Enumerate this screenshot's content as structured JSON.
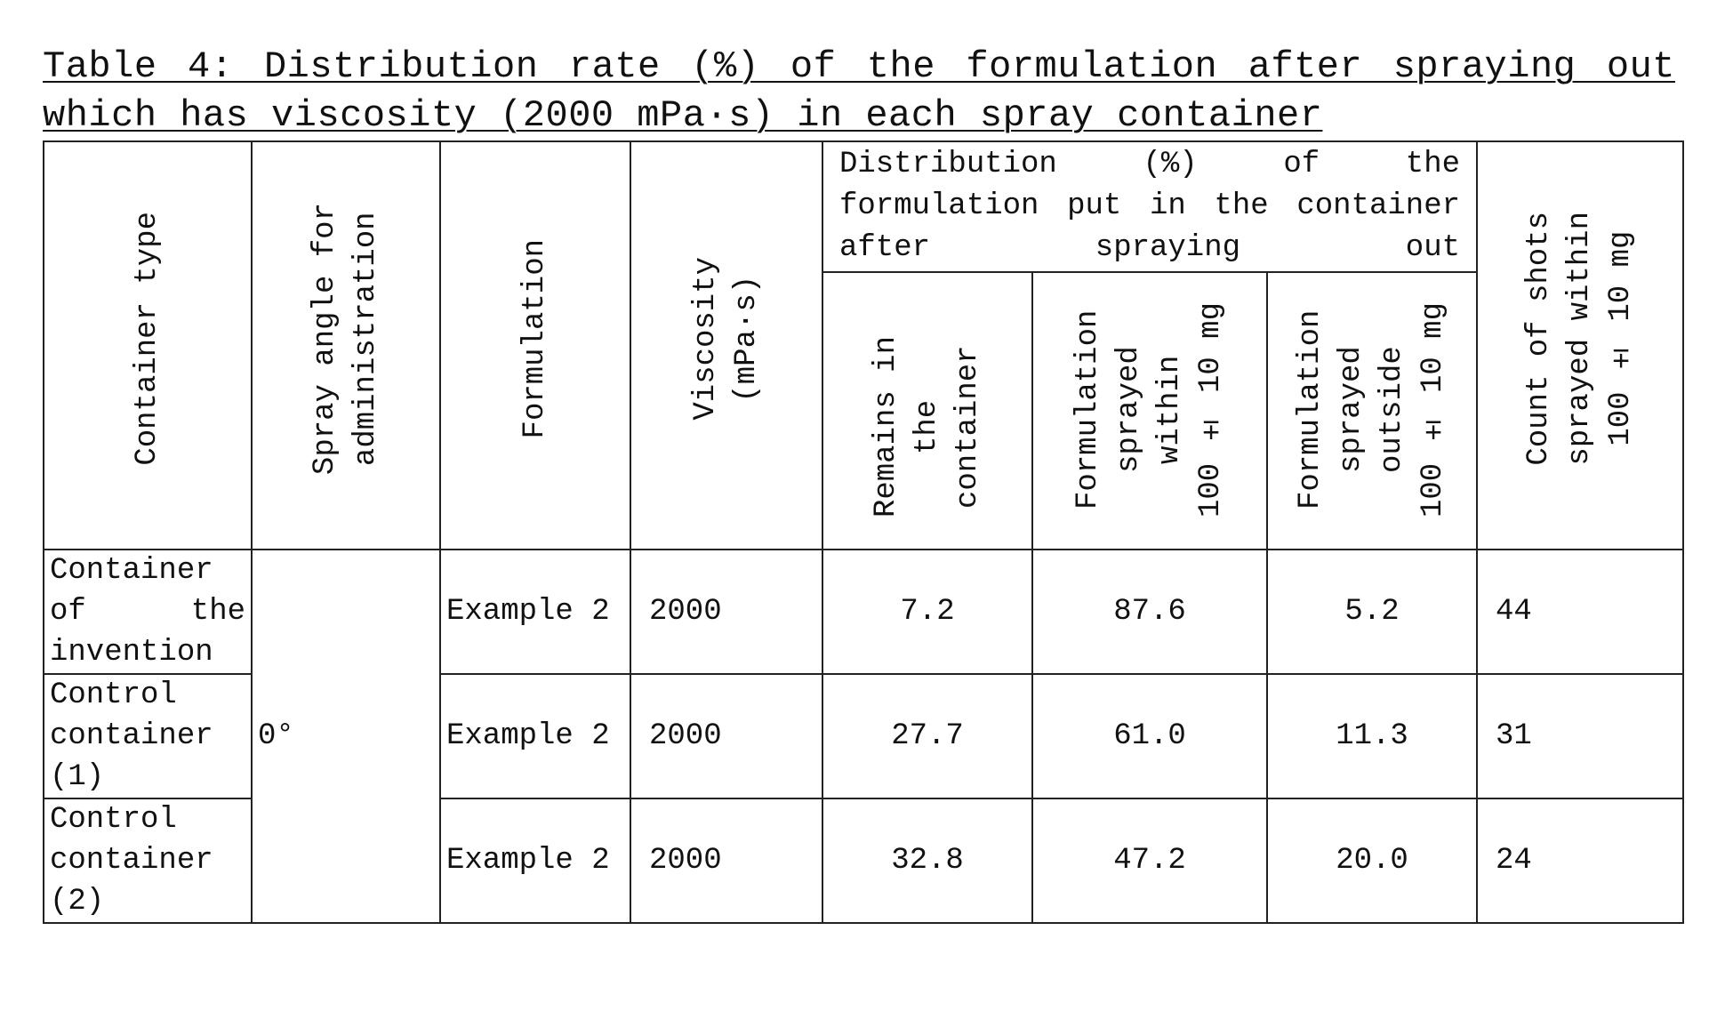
{
  "caption": "Table 4: Distribution rate (%) of the formulation after spraying out which has viscosity (2000 mPa·s) in each spray container",
  "headers": {
    "container_type": "Container type",
    "spray_angle": "Spray angle for\nadministration",
    "formulation": "Formulation",
    "viscosity": "Viscosity\n(mPa·s)",
    "distribution": "Distribution (%) of the formulation put in the container after spraying out",
    "remains": "Remains in\nthe\ncontainer",
    "within": "Formulation\nsprayed\nwithin\n100 ± 10 mg",
    "outside": "Formulation\nsprayed\noutside\n100 ± 10 mg",
    "count": "Count of shots\nsprayed within\n100 ± 10 mg"
  },
  "spray_angle_value": "0°",
  "rows": [
    {
      "container": "Container of the invention",
      "formulation": "Example 2",
      "viscosity": "2000",
      "remains": "7.2",
      "within": "87.6",
      "outside": "5.2",
      "count": "44"
    },
    {
      "container": "Control container (1)",
      "formulation": "Example 2",
      "viscosity": "2000",
      "remains": "27.7",
      "within": "61.0",
      "outside": "11.3",
      "count": "31"
    },
    {
      "container": "Control container (2)",
      "formulation": "Example 2",
      "viscosity": "2000",
      "remains": "32.8",
      "within": "47.2",
      "outside": "20.0",
      "count": "24"
    }
  ]
}
